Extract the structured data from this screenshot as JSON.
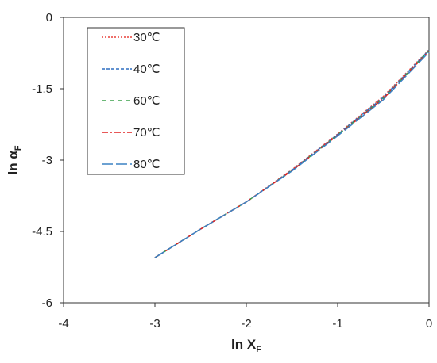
{
  "chart_data": {
    "type": "line",
    "xlabel": "ln X",
    "xlabel_sub": "F",
    "ylabel": "ln α",
    "ylabel_sub": "F",
    "x": [
      -3,
      -2.5,
      -2,
      -1.5,
      -1,
      -0.5,
      0
    ],
    "series": [
      {
        "name": "30℃",
        "color": "#e8403a",
        "values": [
          -5.05,
          -4.45,
          -3.88,
          -3.2,
          -2.45,
          -1.66,
          -0.68
        ]
      },
      {
        "name": "40℃",
        "color": "#2f6fc0",
        "values": [
          -5.05,
          -4.45,
          -3.88,
          -3.21,
          -2.46,
          -1.68,
          -0.69
        ]
      },
      {
        "name": "60℃",
        "color": "#3aa04a",
        "values": [
          -5.05,
          -4.45,
          -3.88,
          -3.22,
          -2.47,
          -1.7,
          -0.7
        ]
      },
      {
        "name": "70℃",
        "color": "#e02020",
        "values": [
          -5.05,
          -4.45,
          -3.88,
          -3.22,
          -2.48,
          -1.71,
          -0.71
        ]
      },
      {
        "name": "80℃",
        "color": "#3b82c4",
        "values": [
          -5.05,
          -4.45,
          -3.88,
          -3.23,
          -2.49,
          -1.73,
          -0.73
        ]
      }
    ],
    "xlim": [
      -4,
      0
    ],
    "xticks": [
      -4,
      -3,
      -2,
      -1,
      0
    ],
    "ylim": [
      -6,
      0
    ],
    "yticks": [
      0,
      -1.5,
      -3,
      -4.5,
      -6
    ],
    "grid": false
  }
}
